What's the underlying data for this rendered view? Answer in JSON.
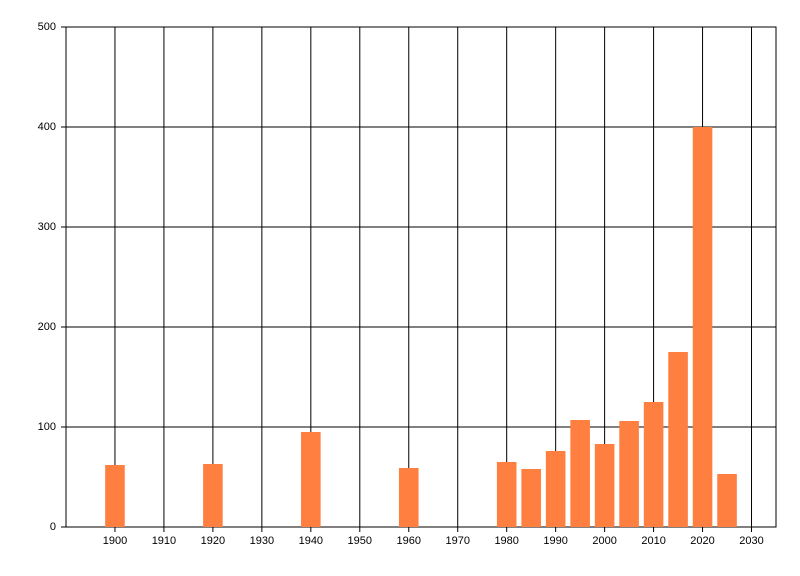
{
  "chart_data": {
    "type": "bar",
    "x": [
      1900,
      1920,
      1940,
      1960,
      1980,
      1985,
      1990,
      1995,
      2000,
      2005,
      2010,
      2015,
      2020,
      2025
    ],
    "values": [
      62,
      63,
      95,
      59,
      65,
      58,
      76,
      107,
      83,
      106,
      125,
      175,
      400,
      53
    ],
    "color": "#ff7f40",
    "xlim": [
      1890,
      2035
    ],
    "xticks": [
      1900,
      1910,
      1920,
      1930,
      1940,
      1950,
      1960,
      1970,
      1980,
      1990,
      2000,
      2010,
      2020,
      2030
    ],
    "ylim": [
      0,
      500
    ],
    "yticks": [
      0,
      100,
      200,
      300,
      400,
      500
    ],
    "grid": true
  }
}
